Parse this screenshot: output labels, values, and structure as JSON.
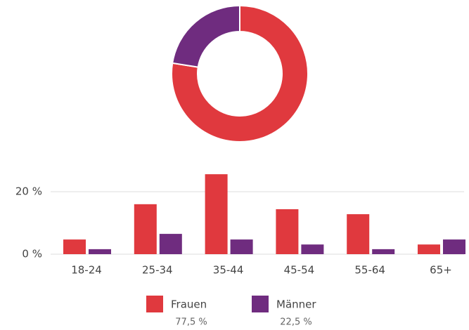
{
  "chart_data": [
    {
      "type": "pie",
      "values": [
        77.5,
        22.5
      ],
      "value_labels": [
        "77,5 %",
        "22,5 %"
      ],
      "colors": [
        "#e0393e",
        "#6f2c7f"
      ]
    },
    {
      "type": "bar",
      "categories": [
        "18-24",
        "25-34",
        "35-44",
        "45-54",
        "55-64",
        "65+"
      ],
      "series": [
        {
          "name": "Frauen",
          "color": "#e0393e",
          "values": [
            4.7,
            16.0,
            25.6,
            14.4,
            12.8,
            3.1
          ]
        },
        {
          "name": "Männer",
          "color": "#6f2c7f",
          "values": [
            1.6,
            6.5,
            4.7,
            3.1,
            1.6,
            4.7
          ]
        }
      ],
      "ylim": [
        0,
        27
      ],
      "yticks": [
        {
          "value": 0,
          "label": "0 %"
        },
        {
          "value": 20,
          "label": "20 %"
        }
      ],
      "grid": true
    }
  ]
}
